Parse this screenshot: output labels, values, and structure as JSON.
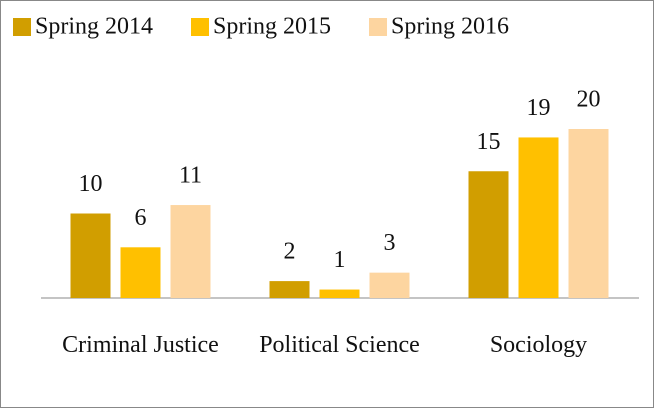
{
  "chart_data": {
    "type": "bar",
    "categories": [
      "Criminal Justice",
      "Political Science",
      "Sociology"
    ],
    "series": [
      {
        "name": "Spring 2014",
        "color": "#d19e00",
        "values": [
          10,
          2,
          15
        ]
      },
      {
        "name": "Spring 2015",
        "color": "#ffc000",
        "values": [
          6,
          1,
          19
        ]
      },
      {
        "name": "Spring 2016",
        "color": "#fdd5a0",
        "values": [
          11,
          3,
          20
        ]
      }
    ]
  }
}
